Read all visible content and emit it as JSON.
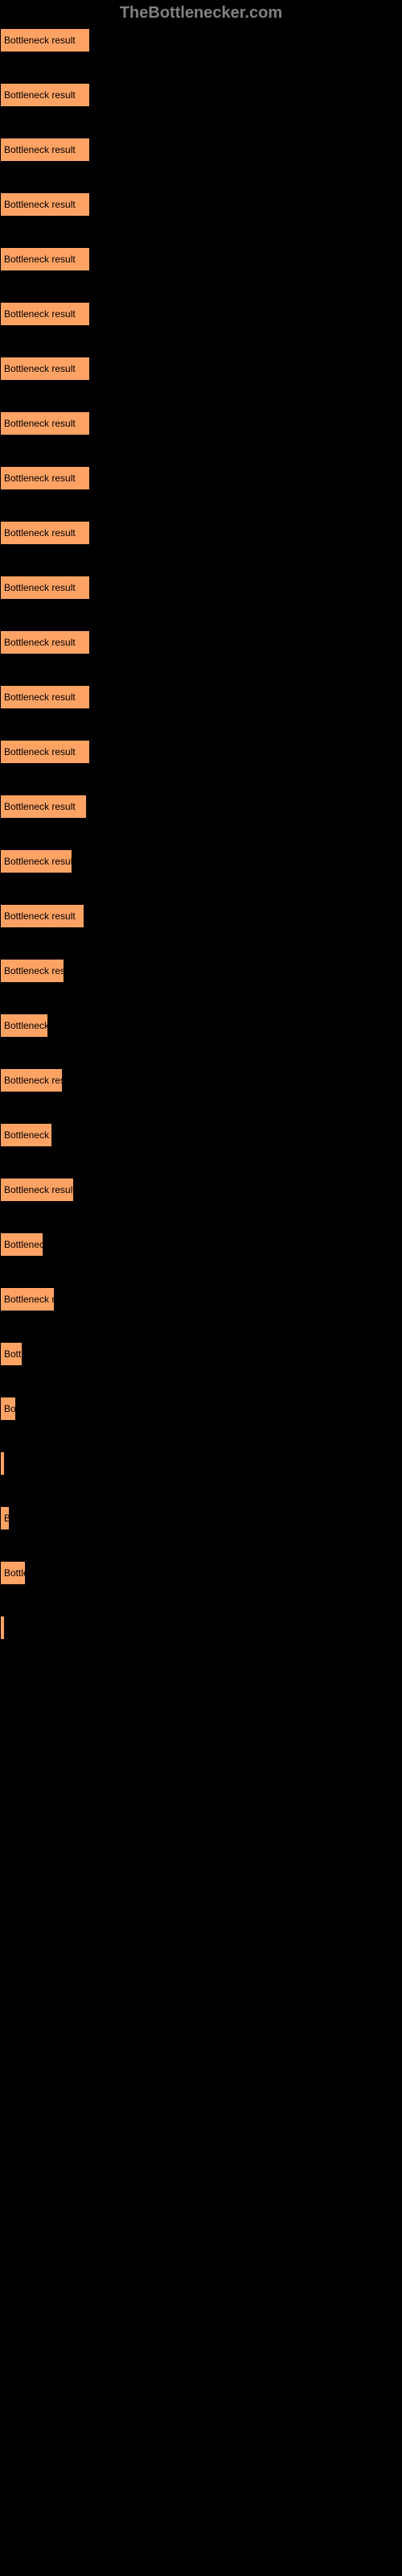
{
  "watermark": "TheBottlenecker.com",
  "bar_label": "Bottleneck result",
  "bar_color": "#ffa365",
  "background": "#000000",
  "bars": [
    {
      "width": 112
    },
    {
      "width": 112
    },
    {
      "width": 112
    },
    {
      "width": 112
    },
    {
      "width": 112
    },
    {
      "width": 112
    },
    {
      "width": 112
    },
    {
      "width": 112
    },
    {
      "width": 112
    },
    {
      "width": 112
    },
    {
      "width": 112
    },
    {
      "width": 112
    },
    {
      "width": 112
    },
    {
      "width": 112
    },
    {
      "width": 108
    },
    {
      "width": 90
    },
    {
      "width": 105
    },
    {
      "width": 80
    },
    {
      "width": 60
    },
    {
      "width": 78
    },
    {
      "width": 65
    },
    {
      "width": 92
    },
    {
      "width": 54
    },
    {
      "width": 68
    },
    {
      "width": 28
    },
    {
      "width": 20
    },
    {
      "width": 4
    },
    {
      "width": 12
    },
    {
      "width": 32
    },
    {
      "width": 4
    }
  ]
}
